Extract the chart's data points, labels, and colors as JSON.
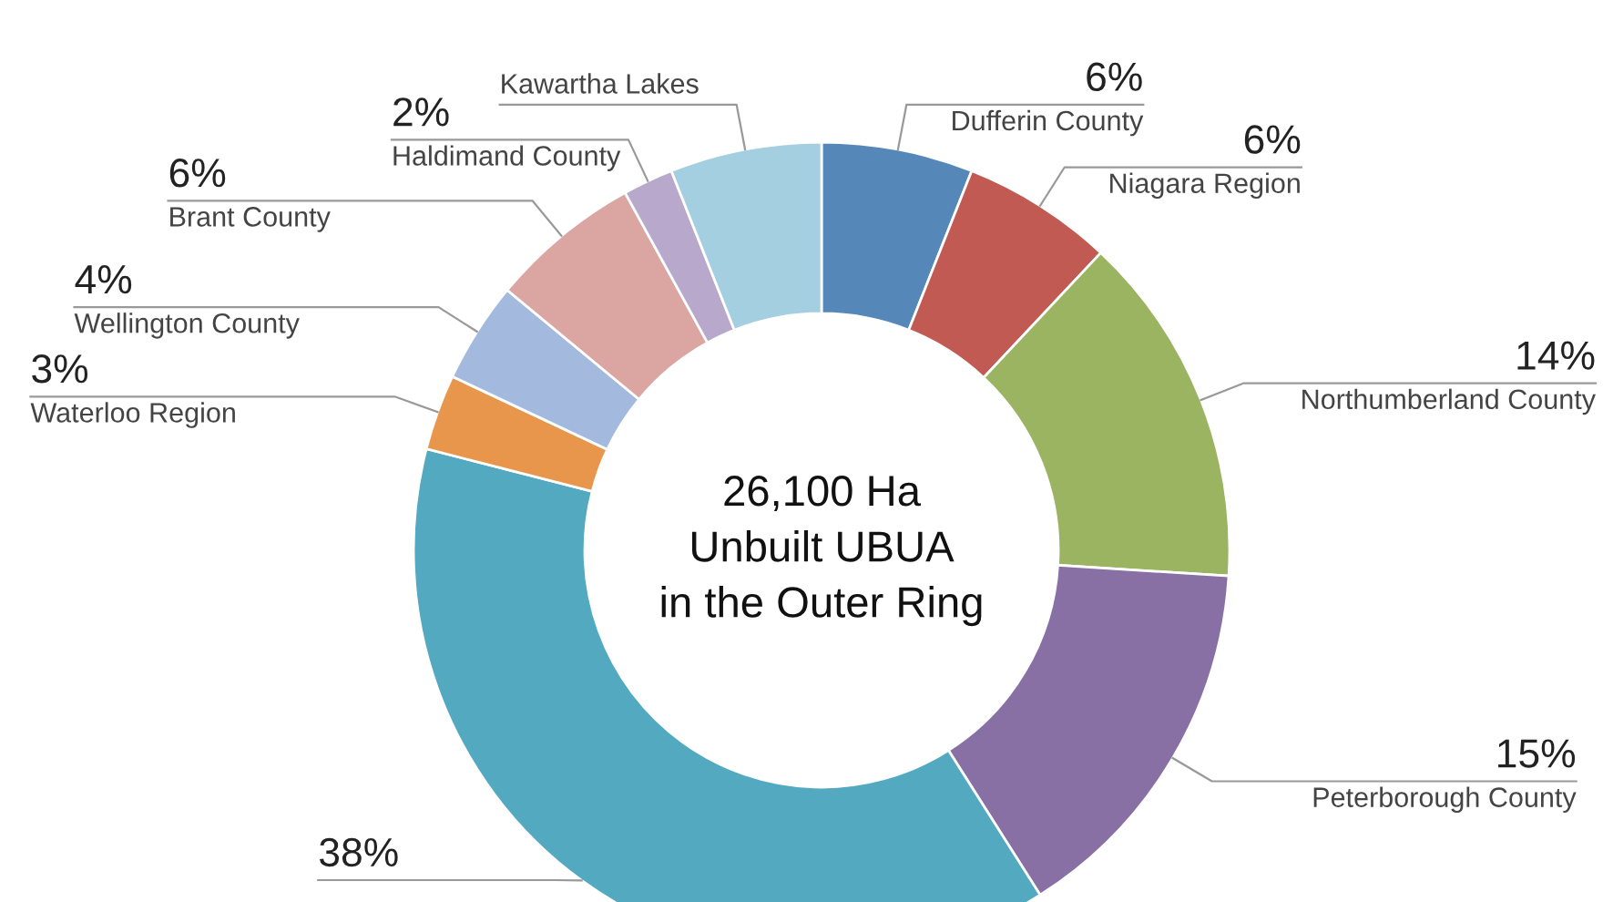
{
  "chart_data": {
    "type": "donut",
    "categories": [
      "Dufferin County",
      "Niagara Region",
      "Northumberland County",
      "Peterborough County",
      null,
      "Waterloo Region",
      "Wellington County",
      "Brant County",
      "Haldimand County",
      "Kawartha Lakes"
    ],
    "values": [
      6,
      6,
      14,
      15,
      38,
      3,
      4,
      6,
      2,
      6
    ],
    "value_labels": [
      "6%",
      "6%",
      "14%",
      "15%",
      "38%",
      "3%",
      "4%",
      "6%",
      "2%",
      null
    ],
    "colors": [
      "#5587b8",
      "#c05a52",
      "#9bb461",
      "#8870a4",
      "#52a9c0",
      "#e8964c",
      "#a3b9de",
      "#dba5a2",
      "#b8a9cc",
      "#a3cfe0"
    ],
    "annotations": [
      "26,100 Ha\nUnbuilt UBUA\nin the Outer Ring"
    ]
  }
}
